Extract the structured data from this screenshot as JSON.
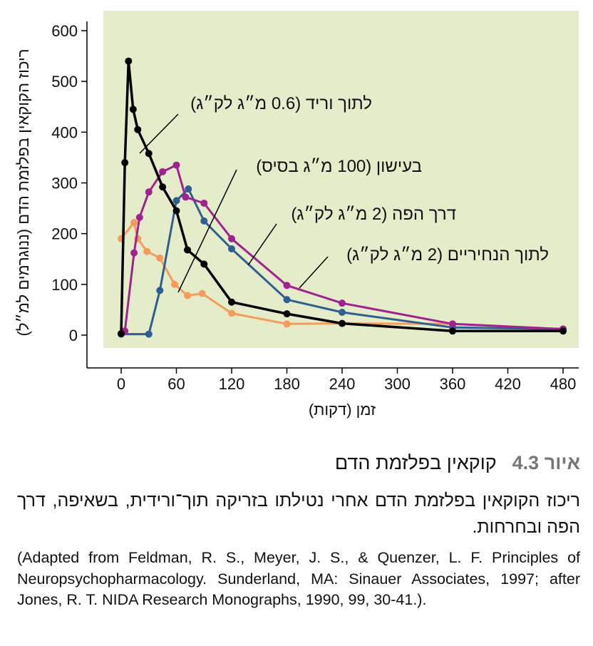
{
  "chart_data": {
    "type": "line",
    "ylabel": "ריכוז הקוקאין בפלזמת הדם (ננוגרמים למ״ל)",
    "xlabel": "זמן (דקות)",
    "xlim": [
      0,
      480
    ],
    "ylim": [
      0,
      600
    ],
    "xticks": [
      0,
      60,
      120,
      180,
      240,
      300,
      360,
      420,
      480
    ],
    "yticks": [
      0,
      100,
      200,
      300,
      400,
      500,
      600
    ],
    "grid": false,
    "background_color": "#e4ecc9",
    "series": [
      {
        "name": "לתוך וריד (0.6 מ״ג לק״ג)",
        "color": "#000000",
        "label_text": "לתוך וריד (0.6 מ״ג לק״ג)",
        "x": [
          0,
          4,
          8,
          13,
          18,
          30,
          45,
          60,
          72,
          90,
          120,
          180,
          240,
          360,
          480
        ],
        "y": [
          3,
          340,
          540,
          445,
          405,
          358,
          292,
          245,
          168,
          140,
          65,
          42,
          23,
          8,
          8
        ]
      },
      {
        "name": "בעישון (100 מ״ג בסיס)",
        "color": "#f59c5d",
        "label_text": "בעישון (100 מ״ג בסיס)",
        "x": [
          0,
          14,
          18,
          28,
          42,
          58,
          72,
          88,
          120,
          180,
          240,
          360,
          480
        ],
        "y": [
          190,
          222,
          190,
          165,
          152,
          100,
          78,
          82,
          43,
          22,
          23,
          22,
          12
        ]
      },
      {
        "name": "דרך הפה (2 מ״ג לק״ג)",
        "color": "#2f5e91",
        "label_text": "דרך הפה (2 מ״ג לק״ג)",
        "x": [
          0,
          30,
          42,
          60,
          73,
          90,
          120,
          180,
          240,
          360,
          480
        ],
        "y": [
          2,
          2,
          88,
          265,
          288,
          225,
          170,
          70,
          45,
          15,
          12
        ]
      },
      {
        "name": "לתוך הנחיריים (2 מ״ג לק״ג)",
        "color": "#a0228f",
        "label_text": "לתוך הנחיריים (2 מ״ג לק״ג)",
        "x": [
          4,
          14,
          20,
          30,
          45,
          60,
          70,
          90,
          120,
          180,
          240,
          360,
          480
        ],
        "y": [
          8,
          162,
          232,
          282,
          322,
          335,
          272,
          260,
          190,
          98,
          63,
          22,
          12
        ]
      }
    ]
  },
  "caption": {
    "figure_prefix": "איור",
    "figure_number": "4.3",
    "title": "קוקאין בפלזמת הדם",
    "description": "ריכוז הקוקאין בפלזמת הדם אחרי נטילתו בזריקה תוך־ורידית, בשאיפה, דרך הפה ובחרחות.",
    "source": "(Adapted from Feldman, R. S., Meyer, J. S., & Quenzer, L. F. Principles of Neuropsychopharmacology. Sunderland, MA: Sinauer Associates, 1997; after Jones, R. T. NIDA Research Monographs, 1990, 99, 30-41.)."
  }
}
